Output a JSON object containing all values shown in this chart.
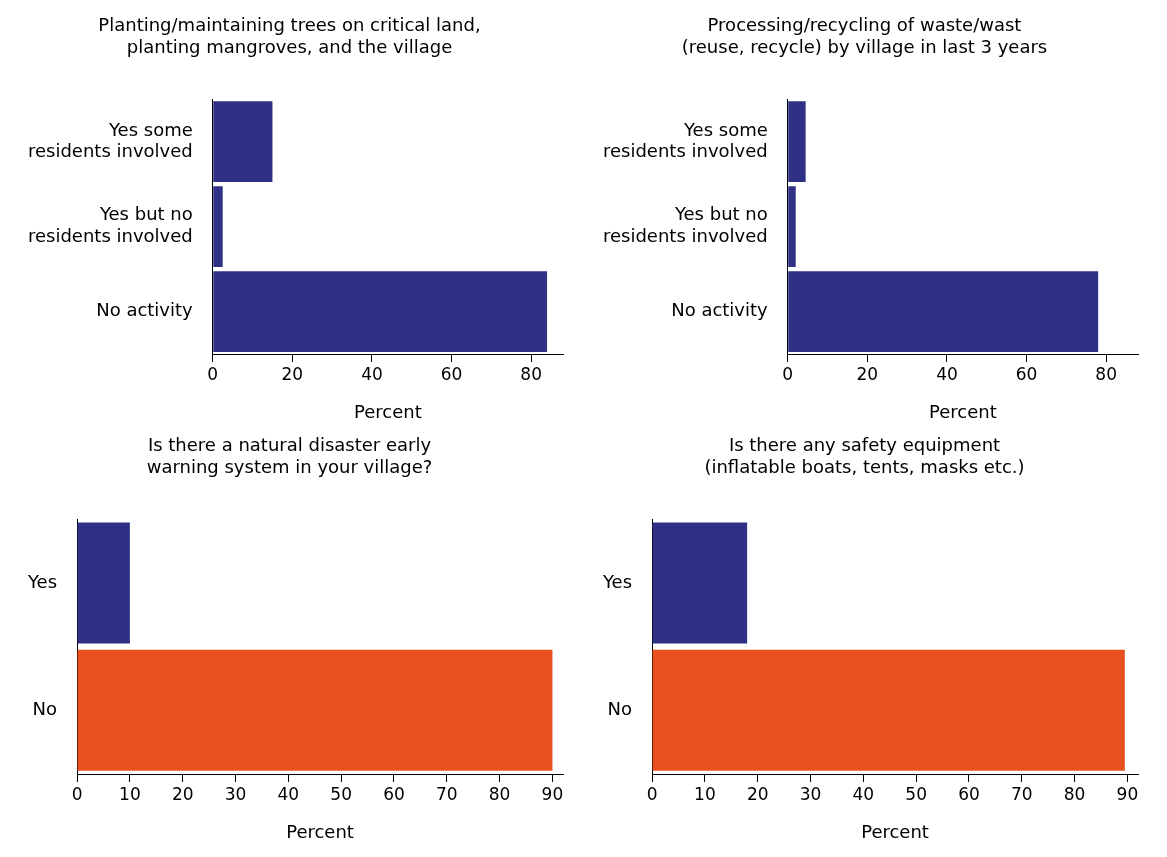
{
  "chart_data": [
    {
      "type": "bar",
      "orientation": "horizontal",
      "title": "Planting/maintaining trees on critical land,\nplanting mangroves, and the village",
      "categories": [
        "Yes some\nresidents involved",
        "Yes but no\nresidents involved",
        "No activity"
      ],
      "values": [
        15,
        2.5,
        84
      ],
      "color": "#2e3184",
      "xlim": [
        0,
        88
      ],
      "xticks": [
        0,
        20,
        40,
        60,
        80
      ],
      "xlabel": "Percent"
    },
    {
      "type": "bar",
      "orientation": "horizontal",
      "title": "Processing/recycling of waste/wast\n(reuse, recycle) by village in last 3 years",
      "categories": [
        "Yes some\nresidents involved",
        "Yes but no\nresidents involved",
        "No activity"
      ],
      "values": [
        4.5,
        2,
        78
      ],
      "color": "#2e3184",
      "xlim": [
        0,
        88
      ],
      "xticks": [
        0,
        20,
        40,
        60,
        80
      ],
      "xlabel": "Percent"
    },
    {
      "type": "bar",
      "orientation": "horizontal",
      "title": "Is there a natural disaster early\nwarning system in your village?",
      "categories": [
        "Yes",
        "No"
      ],
      "values": [
        10,
        90
      ],
      "colors": [
        "#2e3184",
        "#e8501e"
      ],
      "xlim": [
        0,
        92
      ],
      "xticks": [
        0,
        10,
        20,
        30,
        40,
        50,
        60,
        70,
        80,
        90
      ],
      "xlabel": "Percent"
    },
    {
      "type": "bar",
      "orientation": "horizontal",
      "title": "Is there any safety equipment\n(inflatable boats, tents, masks etc.)",
      "categories": [
        "Yes",
        "No"
      ],
      "values": [
        18,
        89.5
      ],
      "colors": [
        "#2e3184",
        "#e8501e"
      ],
      "xlim": [
        0,
        92
      ],
      "xticks": [
        0,
        10,
        20,
        30,
        40,
        50,
        60,
        70,
        80,
        90
      ],
      "xlabel": "Percent"
    }
  ]
}
